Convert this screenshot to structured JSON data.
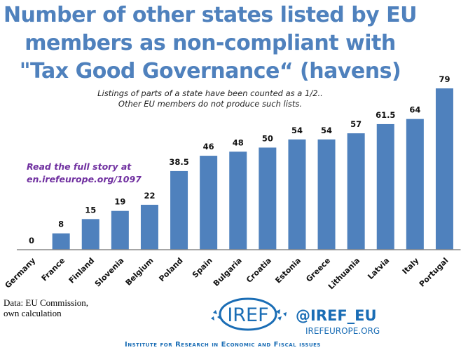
{
  "chart_data": {
    "type": "bar",
    "title": "Number of other states listed by EU members as non-compliant with \"Tax Good Governance“ (havens)",
    "title_lines": [
      "Number of other states listed by EU",
      "members as non-compliant with",
      "\"Tax Good Governance“ (havens)"
    ],
    "subtitle_lines": [
      "Listings of parts of a state have been counted as a 1/2..",
      "Other EU members do not produce such lists."
    ],
    "categories": [
      "Germany",
      "France",
      "Finland",
      "Slovenia",
      "Belgium",
      "Poland",
      "Spain",
      "Bulgaria",
      "Croatia",
      "Estonia",
      "Greece",
      "Lithuania",
      "Latvia",
      "Italy",
      "Portugal"
    ],
    "values": [
      0,
      8,
      15,
      19,
      22,
      38.5,
      46,
      48,
      50,
      54,
      54,
      57,
      61.5,
      64,
      79
    ],
    "data_labels": [
      "0",
      "8",
      "15",
      "19",
      "22",
      "38.5",
      "46",
      "48",
      "50",
      "54",
      "54",
      "57",
      "61.5",
      "64",
      "79"
    ],
    "xlabel": "",
    "ylabel": "",
    "ylim": [
      0,
      80
    ],
    "grid": false,
    "legend": "none",
    "bar_color": "#4f81bd",
    "annotations": [
      "Read the full story at",
      "en.irefeurope.org/1097"
    ]
  },
  "footer": {
    "source_lines": [
      "Data: EU Commission,",
      "own calculation"
    ],
    "logo_text": "IREF",
    "handle": "@IREF_EU",
    "site": "IREFEUROPE.ORG",
    "institute": "Institute for Research in Economic and Fiscal issues"
  },
  "colors": {
    "title": "#4f81bd",
    "annotation": "#7030a0",
    "brand": "#1a6db5"
  }
}
